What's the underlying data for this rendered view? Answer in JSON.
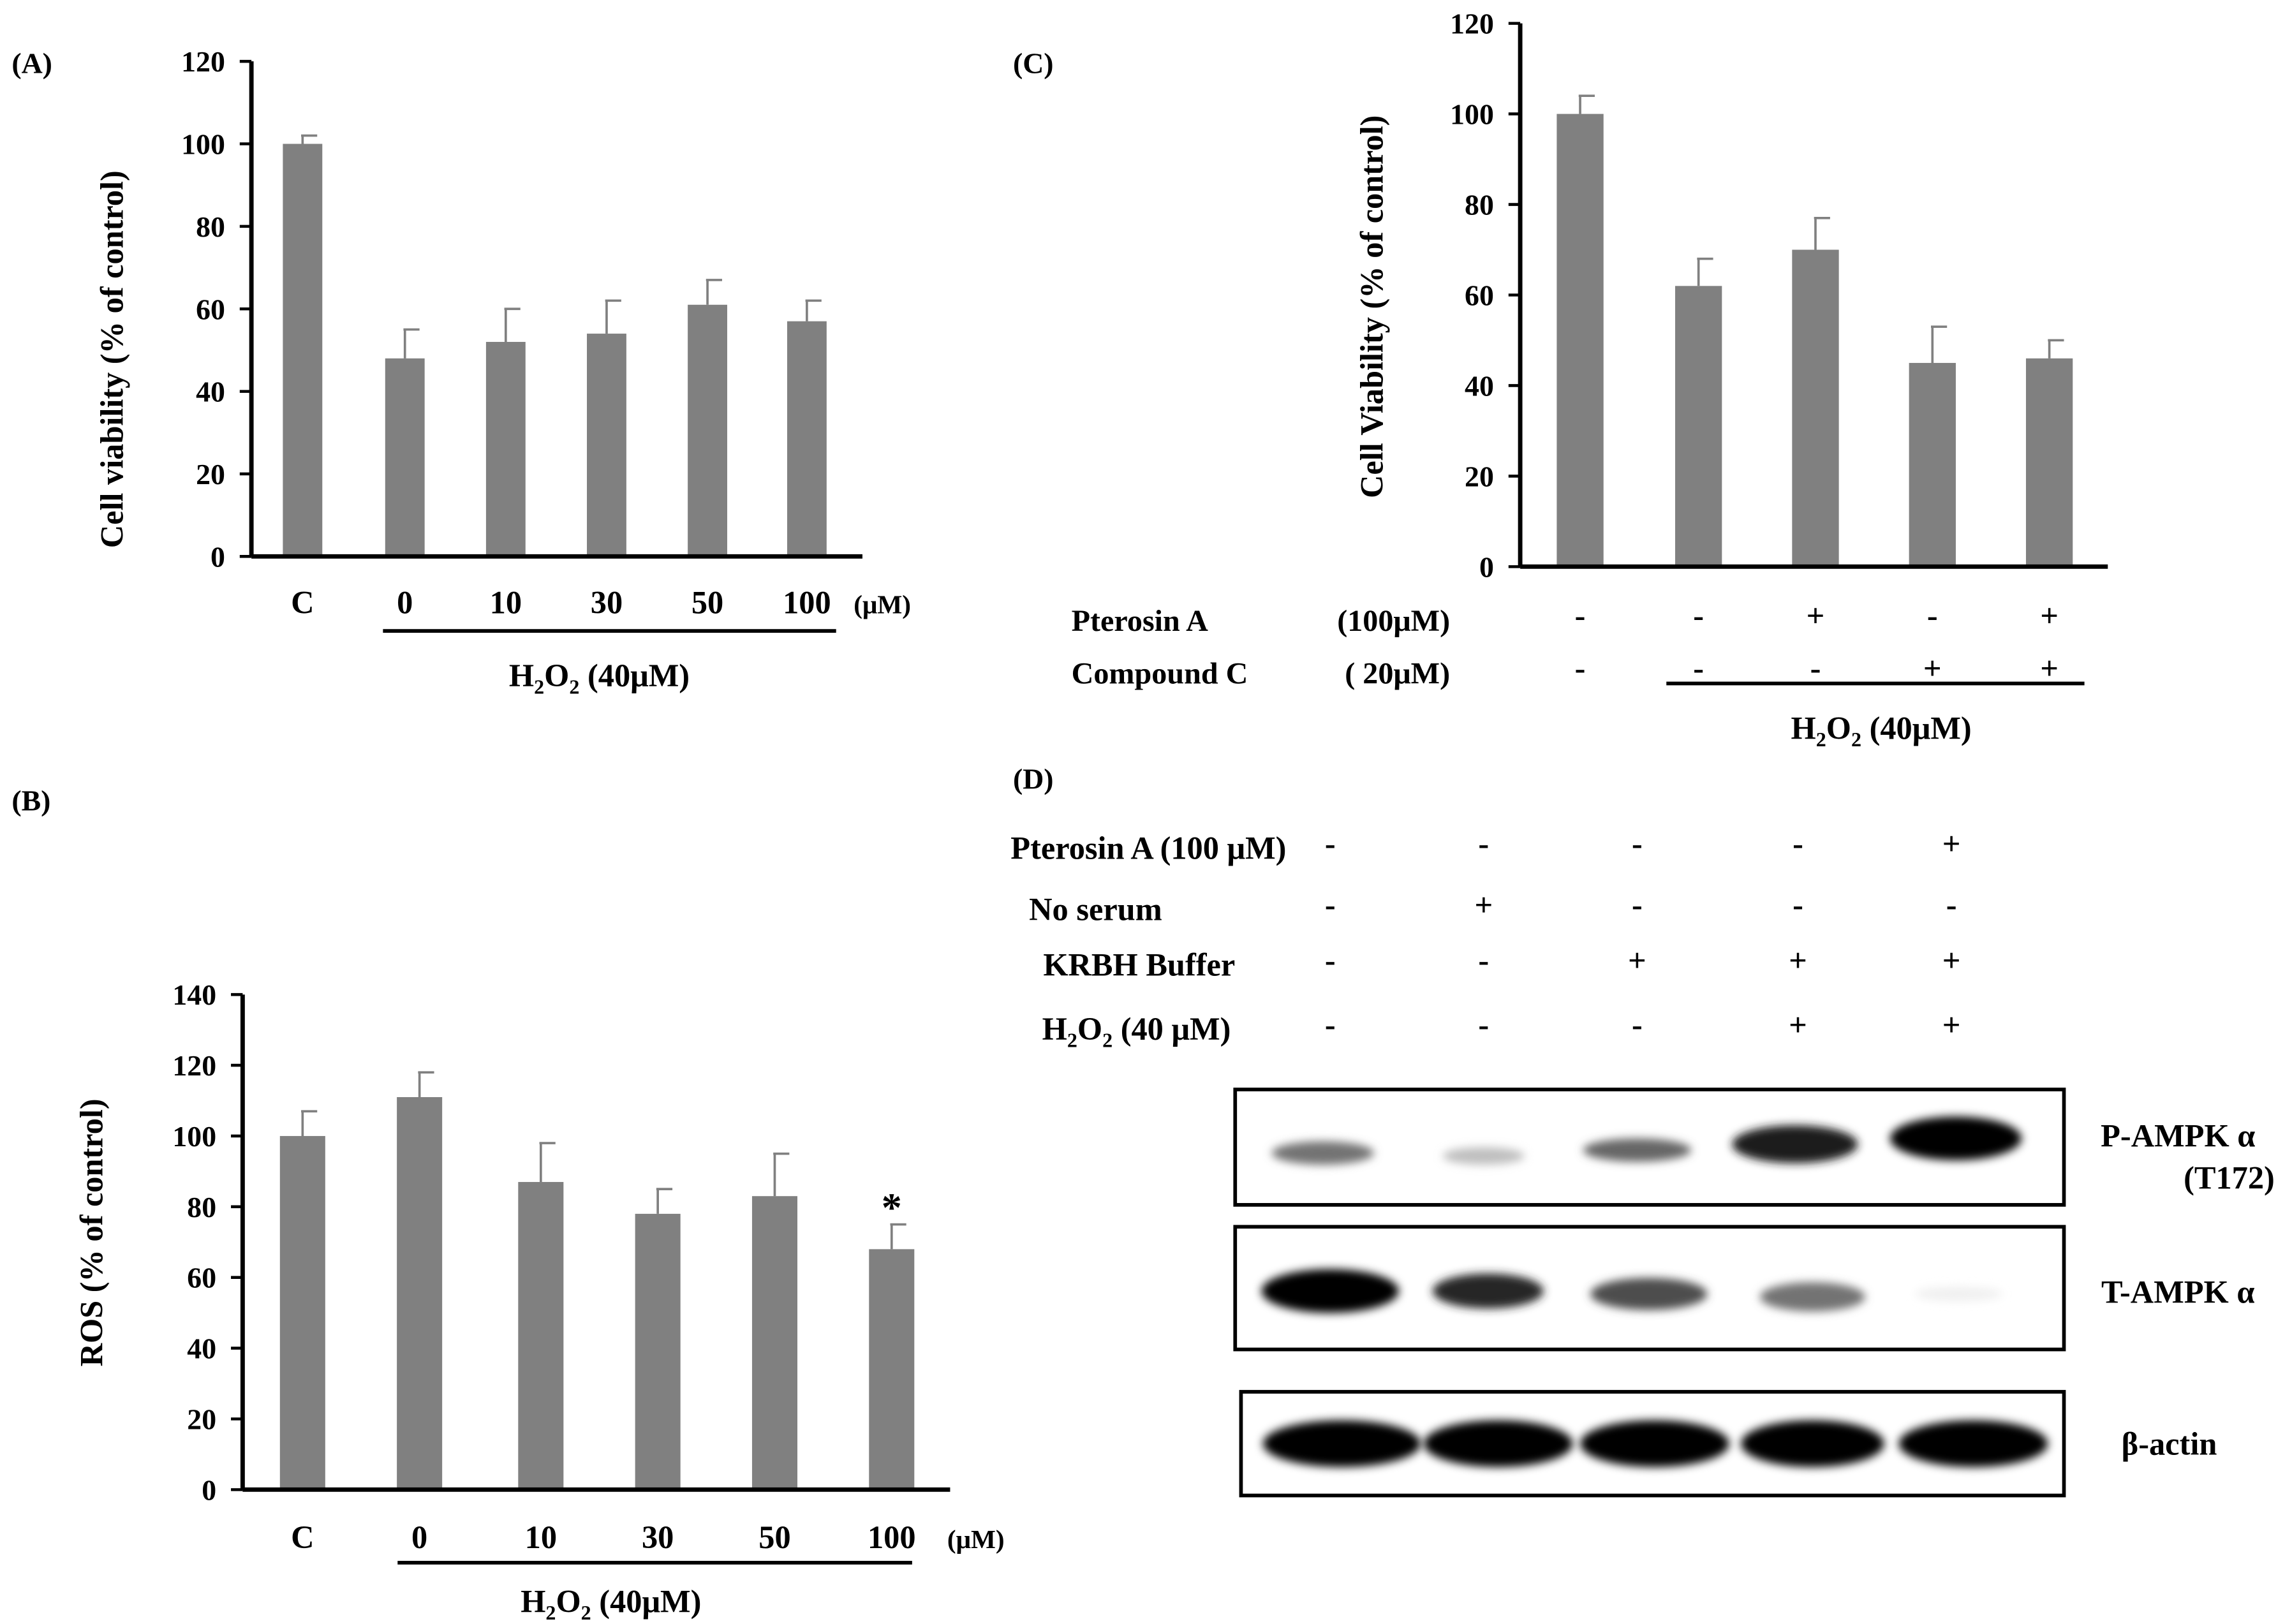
{
  "chart_data": [
    {
      "panel": "(A)",
      "type": "bar",
      "ylabel": "Cell viability (% of control)",
      "ylim": [
        0,
        120
      ],
      "yticks": [
        0,
        20,
        40,
        60,
        80,
        100,
        120
      ],
      "categories": [
        "C",
        "0",
        "10",
        "30",
        "50",
        "100"
      ],
      "unit_label": "(μM)",
      "values": [
        100,
        48,
        52,
        54,
        61,
        57
      ],
      "errors": [
        2,
        7,
        8,
        8,
        6,
        5
      ],
      "group_label": {
        "pre": "H",
        "sub1": "2",
        "mid": "O",
        "sub2": "2",
        "post": " (40μM)"
      }
    },
    {
      "panel": "(B)",
      "type": "bar",
      "ylabel": "ROS (% of control)",
      "ylim": [
        0,
        140
      ],
      "yticks": [
        0,
        20,
        40,
        60,
        80,
        100,
        120,
        140
      ],
      "categories": [
        "C",
        "0",
        "10",
        "30",
        "50",
        "100"
      ],
      "unit_label": "(μM)",
      "values": [
        100,
        111,
        87,
        78,
        83,
        68
      ],
      "errors": [
        7,
        7,
        11,
        7,
        12,
        7
      ],
      "annotations": [
        "",
        "",
        "",
        "",
        "",
        "*"
      ],
      "group_label": {
        "pre": "H",
        "sub1": "2",
        "mid": "O",
        "sub2": "2",
        "post": " (40μM)"
      }
    },
    {
      "panel": "(C)",
      "type": "bar",
      "ylabel": "Cell Viability (% of control)",
      "ylim": [
        0,
        120
      ],
      "yticks": [
        0,
        20,
        40,
        60,
        80,
        100,
        120
      ],
      "values": [
        100,
        62,
        70,
        45,
        46
      ],
      "errors": [
        4,
        6,
        7,
        8,
        4
      ],
      "condition_rows": [
        {
          "label": "Pterosin A",
          "dose": "(100μM)",
          "marks": [
            "-",
            "-",
            "+",
            "-",
            "+"
          ]
        },
        {
          "label": "Compound C",
          "dose": "( 20μM)",
          "marks": [
            "-",
            "-",
            "-",
            "+",
            "+"
          ]
        }
      ],
      "group_label": {
        "pre": "H",
        "sub1": "2",
        "mid": "O",
        "sub2": "2",
        "post": " (40μM)"
      }
    }
  ],
  "blot": {
    "panel": "(D)",
    "conditions": [
      {
        "label": "Pterosin A (100 μM)",
        "marks": [
          "-",
          "-",
          "-",
          "-",
          "+"
        ]
      },
      {
        "label": "No serum",
        "marks": [
          "-",
          "+",
          "-",
          "-",
          "-"
        ]
      },
      {
        "label": "KRBH Buffer",
        "marks": [
          "-",
          "-",
          "+",
          "+",
          "+"
        ]
      },
      {
        "pre": "H",
        "sub1": "2",
        "mid": "O",
        "sub2": "2",
        "post": " (40 μM)",
        "marks": [
          "-",
          "-",
          "-",
          "+",
          "+"
        ]
      }
    ],
    "rows": [
      {
        "label": "P-AMPK α",
        "label2": "(T172)",
        "intensity": [
          0.55,
          0.25,
          0.6,
          0.9,
          1.0
        ]
      },
      {
        "label": "T-AMPK α",
        "label2": "",
        "intensity": [
          1.0,
          0.85,
          0.7,
          0.55,
          0.06
        ]
      },
      {
        "label": "β-actin",
        "label2": "",
        "intensity": [
          1.0,
          1.0,
          1.0,
          1.0,
          1.0
        ]
      }
    ]
  }
}
